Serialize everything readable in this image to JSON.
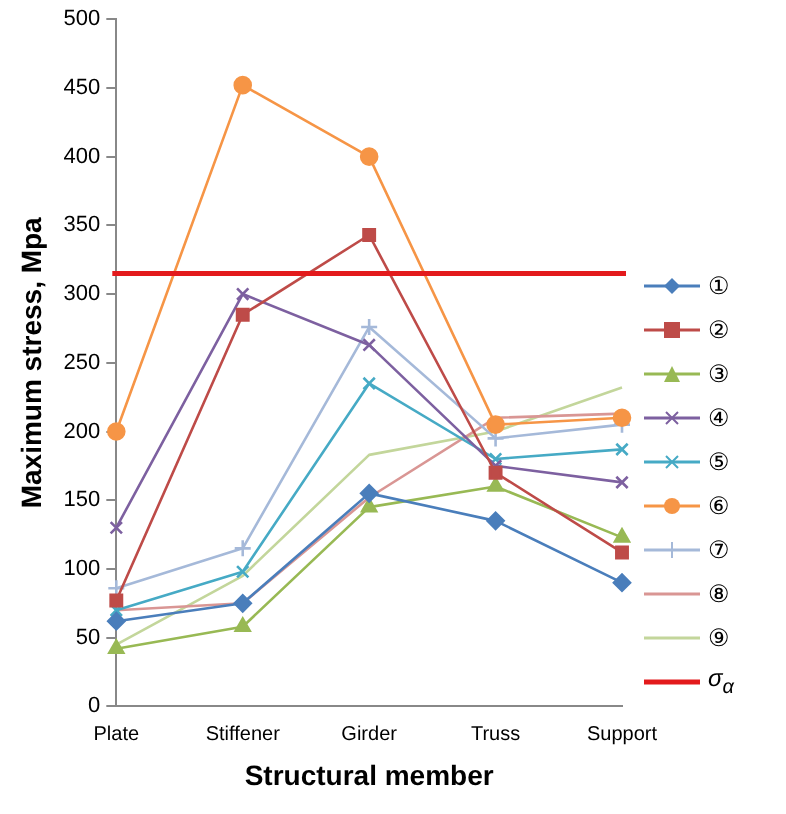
{
  "chart_data": {
    "type": "line",
    "xlabel": "Structural member",
    "ylabel": "Maximum stress, Mpa",
    "categories": [
      "Plate",
      "Stiffener",
      "Girder",
      "Truss",
      "Support"
    ],
    "ylim": [
      0,
      500
    ],
    "yticks": [
      0,
      50,
      100,
      150,
      200,
      250,
      300,
      350,
      400,
      450,
      500
    ],
    "grid": false,
    "legend": "right",
    "series": [
      {
        "name": "①",
        "color": "#4a7ebb",
        "marker": "diamond",
        "values": [
          62,
          75,
          155,
          135,
          90
        ]
      },
      {
        "name": "②",
        "color": "#be4b48",
        "marker": "square",
        "values": [
          77,
          285,
          343,
          170,
          112
        ]
      },
      {
        "name": "③",
        "color": "#98b954",
        "marker": "triangle",
        "values": [
          42,
          58,
          145,
          160,
          123
        ]
      },
      {
        "name": "④",
        "color": "#7d60a0",
        "marker": "cross",
        "values": [
          130,
          300,
          263,
          175,
          163
        ]
      },
      {
        "name": "⑤",
        "color": "#46aac5",
        "marker": "cross",
        "values": [
          70,
          98,
          235,
          180,
          187
        ]
      },
      {
        "name": "⑥",
        "color": "#f69546",
        "marker": "circle",
        "values": [
          200,
          452,
          400,
          205,
          210
        ]
      },
      {
        "name": "⑦",
        "color": "#a5b9d9",
        "marker": "plus",
        "values": [
          86,
          115,
          276,
          195,
          205
        ]
      },
      {
        "name": "⑧",
        "color": "#d99694",
        "marker": "none",
        "values": [
          70,
          75,
          152,
          210,
          213
        ]
      },
      {
        "name": "⑨",
        "color": "#c3d69b",
        "marker": "none",
        "values": [
          45,
          95,
          183,
          200,
          232
        ]
      }
    ],
    "ref_lines": [
      {
        "axis": "y",
        "value": 315,
        "label": "σ$_{α}$",
        "color": "#e31a1c"
      }
    ]
  }
}
